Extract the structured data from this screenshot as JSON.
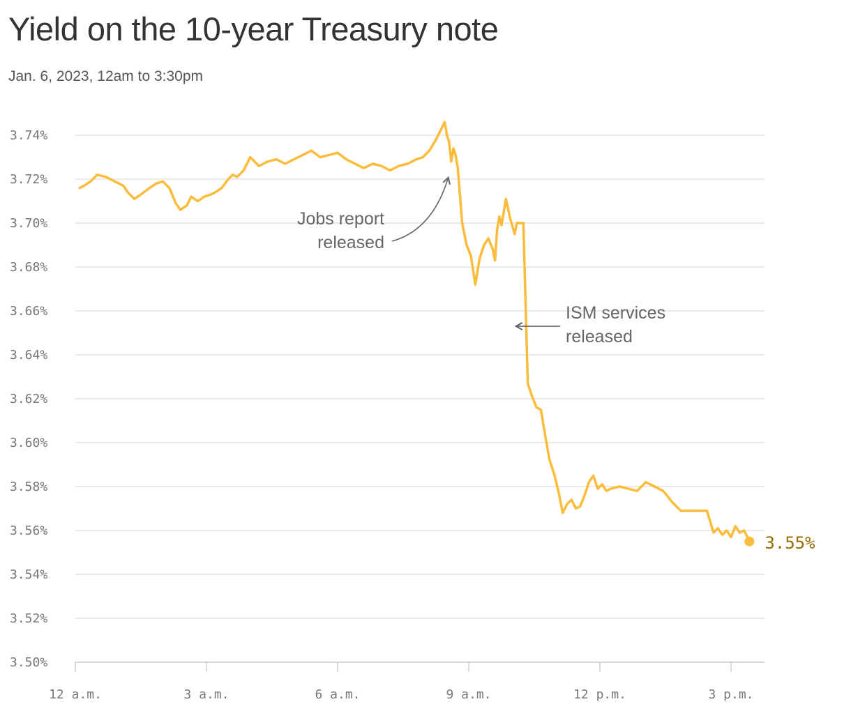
{
  "chart_data": {
    "type": "line",
    "title": "Yield on the 10-year Treasury note",
    "subtitle": "Jan. 6, 2023, 12am to 3:30pm",
    "xlabel": "",
    "ylabel": "",
    "ylim": [
      3.5,
      3.75
    ],
    "xlim": [
      0,
      15.5
    ],
    "y_ticks": [
      3.5,
      3.52,
      3.54,
      3.56,
      3.58,
      3.6,
      3.62,
      3.64,
      3.66,
      3.68,
      3.7,
      3.72,
      3.74
    ],
    "y_tick_labels": [
      "3.50%",
      "3.52%",
      "3.54%",
      "3.56%",
      "3.58%",
      "3.60%",
      "3.62%",
      "3.64%",
      "3.66%",
      "3.68%",
      "3.70%",
      "3.72%",
      "3.74%"
    ],
    "x_ticks": [
      0,
      3,
      6,
      9,
      12,
      15
    ],
    "x_tick_labels": [
      "12 a.m.",
      "3 a.m.",
      "6 a.m.",
      "9 a.m.",
      "12 p.m.",
      "3 p.m."
    ],
    "grid": true,
    "line_color": "#fbbc3b",
    "series": [
      {
        "x": [
          0.1,
          0.2,
          0.35,
          0.5,
          0.7,
          0.9,
          1.1,
          1.2,
          1.35,
          1.5,
          1.7,
          1.85,
          2.0,
          2.15,
          2.3,
          2.4,
          2.55,
          2.65,
          2.8,
          2.95,
          3.1,
          3.2,
          3.35,
          3.5,
          3.6,
          3.7,
          3.85,
          4.0,
          4.2,
          4.4,
          4.6,
          4.8,
          5.0,
          5.2,
          5.4,
          5.6,
          5.8,
          6.0,
          6.2,
          6.4,
          6.6,
          6.8,
          7.0,
          7.2,
          7.4,
          7.6,
          7.8,
          7.95,
          8.1,
          8.25,
          8.35,
          8.45,
          8.5,
          8.55,
          8.6,
          8.65,
          8.7,
          8.75,
          8.85,
          8.95,
          9.05,
          9.15,
          9.25,
          9.35,
          9.45,
          9.55,
          9.6,
          9.65,
          9.7,
          9.75,
          9.85,
          9.95,
          10.05,
          10.1,
          10.15,
          10.25,
          10.35,
          10.45,
          10.55,
          10.65,
          10.75,
          10.85,
          10.95,
          11.05,
          11.15,
          11.25,
          11.35,
          11.45,
          11.55,
          11.65,
          11.75,
          11.85,
          11.95,
          12.05,
          12.15,
          12.25,
          12.45,
          12.65,
          12.85,
          13.05,
          13.25,
          13.45,
          13.65,
          13.85,
          14.05,
          14.25,
          14.45,
          14.6,
          14.7,
          14.8,
          14.9,
          15.0,
          15.1,
          15.2,
          15.3,
          15.42
        ],
        "y": [
          3.716,
          3.717,
          3.719,
          3.722,
          3.721,
          3.719,
          3.717,
          3.714,
          3.711,
          3.713,
          3.716,
          3.718,
          3.719,
          3.716,
          3.709,
          3.706,
          3.708,
          3.712,
          3.71,
          3.712,
          3.713,
          3.714,
          3.716,
          3.72,
          3.722,
          3.721,
          3.724,
          3.73,
          3.726,
          3.728,
          3.729,
          3.727,
          3.729,
          3.731,
          3.733,
          3.73,
          3.731,
          3.732,
          3.729,
          3.727,
          3.725,
          3.727,
          3.726,
          3.724,
          3.726,
          3.727,
          3.729,
          3.73,
          3.733,
          3.738,
          3.742,
          3.746,
          3.74,
          3.737,
          3.728,
          3.734,
          3.731,
          3.725,
          3.7,
          3.69,
          3.685,
          3.672,
          3.684,
          3.69,
          3.693,
          3.688,
          3.683,
          3.697,
          3.703,
          3.699,
          3.711,
          3.702,
          3.695,
          3.7,
          3.7,
          3.7,
          3.627,
          3.621,
          3.616,
          3.615,
          3.603,
          3.592,
          3.586,
          3.578,
          3.568,
          3.572,
          3.574,
          3.57,
          3.571,
          3.576,
          3.582,
          3.585,
          3.579,
          3.581,
          3.578,
          3.579,
          3.58,
          3.579,
          3.578,
          3.582,
          3.58,
          3.578,
          3.573,
          3.569,
          3.569,
          3.569,
          3.569,
          3.559,
          3.561,
          3.558,
          3.56,
          3.557,
          3.562,
          3.559,
          3.56,
          3.555
        ]
      }
    ],
    "end_label": "3.55%",
    "annotations": [
      {
        "lines": [
          "Jobs report",
          "released"
        ],
        "x": 8.5,
        "y": 3.722
      },
      {
        "lines": [
          "ISM services",
          "released"
        ],
        "x": 10.05,
        "y": 3.653
      }
    ]
  }
}
